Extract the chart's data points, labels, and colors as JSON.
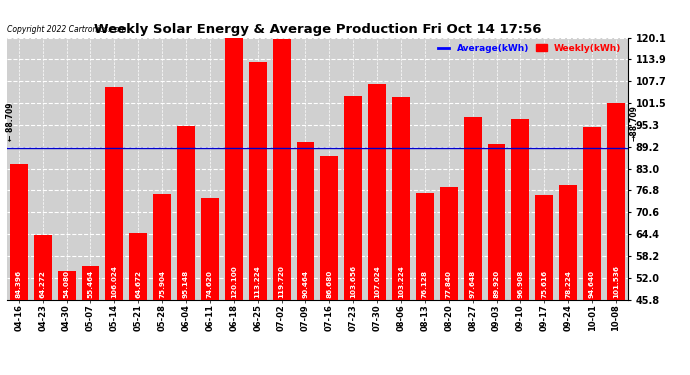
{
  "title": "Weekly Solar Energy & Average Production Fri Oct 14 17:56",
  "copyright": "Copyright 2022 Cartronics.com",
  "average_label": "Average(kWh)",
  "weekly_label": "Weekly(kWh)",
  "average_value": 88.709,
  "categories": [
    "04-16",
    "04-23",
    "04-30",
    "05-07",
    "05-14",
    "05-21",
    "05-28",
    "06-04",
    "06-11",
    "06-18",
    "06-25",
    "07-02",
    "07-09",
    "07-16",
    "07-23",
    "07-30",
    "08-06",
    "08-13",
    "08-20",
    "08-27",
    "09-03",
    "09-10",
    "09-17",
    "09-24",
    "10-01",
    "10-08"
  ],
  "values": [
    84.396,
    64.272,
    54.08,
    55.464,
    106.024,
    64.672,
    75.904,
    95.148,
    74.62,
    120.1,
    113.224,
    119.72,
    90.464,
    86.68,
    103.656,
    107.024,
    103.224,
    76.128,
    77.84,
    97.648,
    89.92,
    96.908,
    75.616,
    78.224,
    94.64,
    101.536
  ],
  "bar_color": "#ff0000",
  "average_line_color": "#0000cd",
  "ytick_labels": [
    "45.8",
    "52.0",
    "58.2",
    "64.4",
    "70.6",
    "76.8",
    "83.0",
    "89.2",
    "95.3",
    "101.5",
    "107.7",
    "113.9",
    "120.1"
  ],
  "ytick_values": [
    45.8,
    52.0,
    58.2,
    64.4,
    70.6,
    76.8,
    83.0,
    89.2,
    95.3,
    101.5,
    107.7,
    113.9,
    120.1
  ],
  "ylim_min": 45.8,
  "ylim_max": 120.1,
  "plot_bg_color": "#d0d0d0",
  "fig_bg_color": "#ffffff",
  "text_color_inside": "#ffffff",
  "label_color_avg": "#0000ff",
  "label_color_weekly": "#ff0000",
  "avg_annotation_text": "88.709",
  "fig_width": 6.9,
  "fig_height": 3.75,
  "bar_bottom": 45.8
}
